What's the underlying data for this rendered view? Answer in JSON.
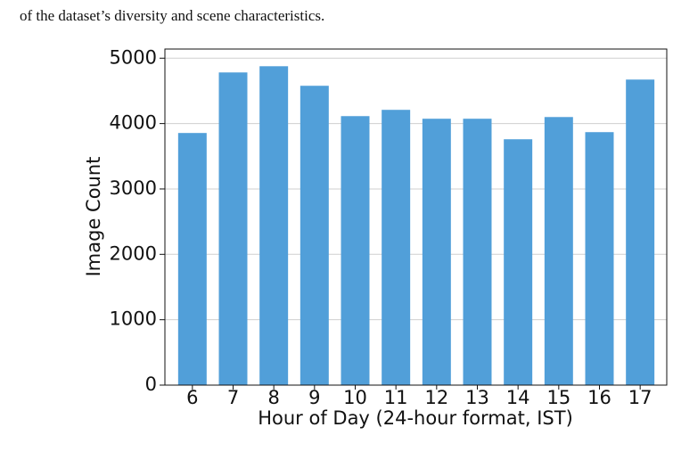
{
  "text": "of the dataset’s diversity and scene characteristics.",
  "chart_data": {
    "type": "bar",
    "xlabel": "Hour of Day (24-hour format, IST)",
    "ylabel": "Image Count",
    "categories": [
      "6",
      "7",
      "8",
      "9",
      "10",
      "11",
      "12",
      "13",
      "14",
      "15",
      "16",
      "17"
    ],
    "values": [
      3856,
      4782,
      4877,
      4578,
      4114,
      4210,
      4074,
      4074,
      3760,
      4100,
      3869,
      4673
    ],
    "color": "#519fd9",
    "ylim": [
      0,
      5140
    ],
    "yticks": [
      0,
      1000,
      2000,
      3000,
      4000,
      5000
    ],
    "grid": true
  }
}
